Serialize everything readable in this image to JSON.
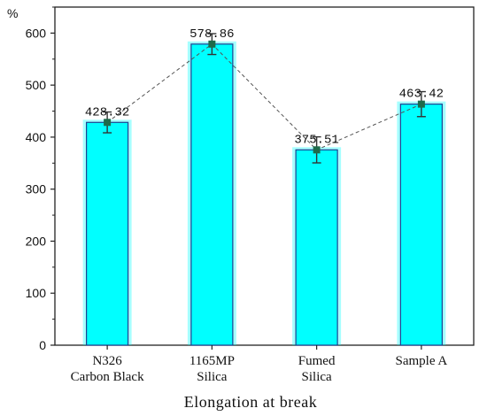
{
  "chart_data": {
    "type": "bar",
    "title": "",
    "xlabel": "Elongation at break",
    "ylabel": "%",
    "ylim": [
      0,
      650
    ],
    "yticks": [
      0,
      100,
      200,
      300,
      400,
      500,
      600
    ],
    "grid": false,
    "categories": [
      [
        "N326",
        "Carbon Black"
      ],
      [
        "1165MP",
        "Silica"
      ],
      [
        "Fumed",
        "Silica"
      ],
      [
        "Sample A"
      ]
    ],
    "values": [
      428.32,
      578.86,
      375.51,
      463.42
    ],
    "value_labels": [
      "428.32",
      "578.86",
      "375.51",
      "463.42"
    ],
    "error_bars": [
      20,
      20,
      25,
      24
    ],
    "colors": {
      "bar_fill": "#00FFFF",
      "bar_stroke": "#1f3f8f",
      "marker": "#1e6b4a",
      "line": "#555555",
      "error_bar": "#333333"
    }
  }
}
